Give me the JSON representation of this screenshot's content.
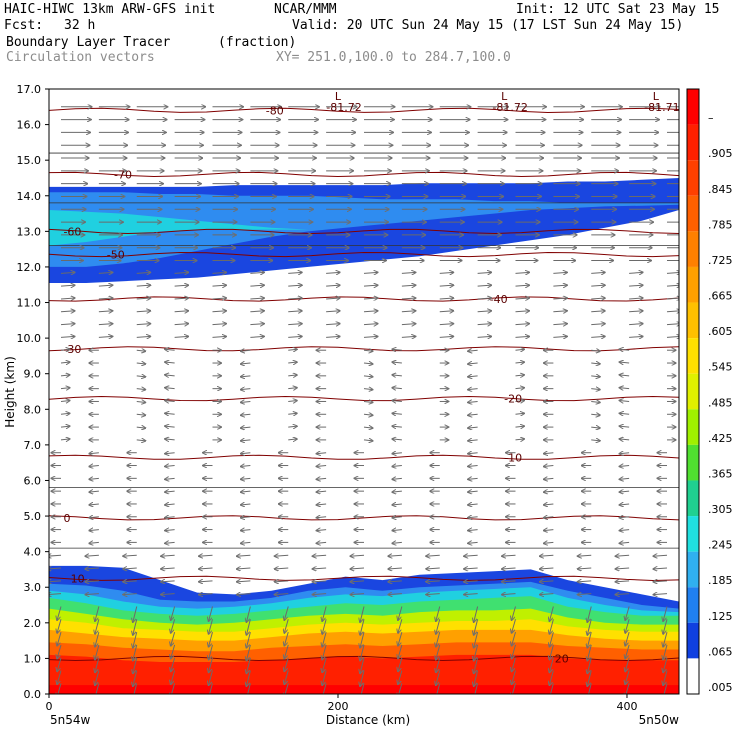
{
  "header": {
    "model": "HAIC-HIWC 13km ARW-GFS init",
    "org": "NCAR/MMM",
    "init": "Init: 12 UTC Sat 23 May 15",
    "fcst_label": "Fcst:",
    "fcst_value": "32 h",
    "valid": "Valid: 20 UTC Sun 24 May 15 (17 LST Sun 24 May 15)",
    "field": "Boundary Layer Tracer",
    "field_units": "(fraction)",
    "overlay": "Circulation vectors",
    "xy": "XY= 251.0,100.0 to 284.7,100.0"
  },
  "chart_data": {
    "type": "heatmap",
    "ylabel": "Height (km)",
    "xlabel": "Distance (km)",
    "ylim": [
      0,
      17
    ],
    "xlim": [
      0,
      436
    ],
    "y_ticks": [
      "0.0",
      "1.0",
      "2.0",
      "3.0",
      "4.0",
      "5.0",
      "6.0",
      "7.0",
      "8.0",
      "9.0",
      "10.0",
      "11.0",
      "12.0",
      "13.0",
      "14.0",
      "15.0",
      "16.0",
      "17.0"
    ],
    "x_ticks": [
      {
        "value": 0,
        "label": "0"
      },
      {
        "value": 200,
        "label": "200"
      },
      {
        "value": 400,
        "label": "400"
      }
    ],
    "x_endpoints": {
      "left": "5n54w",
      "right": "5n50w"
    },
    "colorbar": {
      "labels": [
        "–",
        ".905",
        ".845",
        ".785",
        ".725",
        ".665",
        ".605",
        ".545",
        ".485",
        ".425",
        ".365",
        ".305",
        ".245",
        ".185",
        ".125",
        ".065",
        ".005"
      ],
      "colors": [
        "#ff0000",
        "#ff2000",
        "#ff4000",
        "#ff6000",
        "#ff8000",
        "#ffa000",
        "#ffc000",
        "#ffe000",
        "#e0f000",
        "#a0f000",
        "#50e030",
        "#20d090",
        "#20e0e0",
        "#30b0f0",
        "#2080f0",
        "#1040e0",
        "#ffffff"
      ]
    },
    "tracer_layers": [
      {
        "color": "#1a46e0",
        "top": [
          3.6,
          3.6,
          3.55,
          3.2,
          2.85,
          2.8,
          2.9,
          3.1,
          3.3,
          3.2,
          3.35,
          3.4,
          3.45,
          3.5,
          3.2,
          3.0,
          2.8,
          2.6
        ]
      },
      {
        "color": "#2f8cf0",
        "top": [
          3.1,
          3.05,
          2.9,
          2.65,
          2.6,
          2.6,
          2.7,
          2.9,
          3.0,
          2.9,
          3.0,
          3.05,
          3.1,
          3.15,
          2.9,
          2.7,
          2.5,
          2.4
        ]
      },
      {
        "color": "#20d0e0",
        "top": [
          2.9,
          2.8,
          2.6,
          2.45,
          2.4,
          2.45,
          2.55,
          2.7,
          2.8,
          2.75,
          2.85,
          2.9,
          2.95,
          3.0,
          2.7,
          2.5,
          2.35,
          2.3
        ]
      },
      {
        "color": "#40e070",
        "top": [
          2.7,
          2.55,
          2.35,
          2.25,
          2.2,
          2.25,
          2.35,
          2.45,
          2.55,
          2.5,
          2.6,
          2.65,
          2.7,
          2.75,
          2.45,
          2.3,
          2.2,
          2.2
        ]
      },
      {
        "color": "#c0f000",
        "top": [
          2.4,
          2.25,
          2.1,
          2.0,
          1.95,
          2.0,
          2.1,
          2.2,
          2.25,
          2.2,
          2.3,
          2.35,
          2.35,
          2.4,
          2.15,
          2.0,
          1.95,
          1.95
        ]
      },
      {
        "color": "#ffe000",
        "top": [
          2.1,
          2.0,
          1.85,
          1.8,
          1.75,
          1.75,
          1.85,
          1.95,
          2.0,
          1.95,
          2.0,
          2.05,
          2.05,
          2.1,
          1.9,
          1.8,
          1.75,
          1.75
        ]
      },
      {
        "color": "#ffa000",
        "top": [
          1.8,
          1.7,
          1.6,
          1.55,
          1.5,
          1.5,
          1.6,
          1.7,
          1.75,
          1.7,
          1.75,
          1.8,
          1.8,
          1.8,
          1.65,
          1.55,
          1.5,
          1.5
        ]
      },
      {
        "color": "#ff6000",
        "top": [
          1.45,
          1.4,
          1.3,
          1.25,
          1.2,
          1.2,
          1.3,
          1.35,
          1.4,
          1.35,
          1.4,
          1.45,
          1.45,
          1.45,
          1.35,
          1.3,
          1.25,
          1.25
        ]
      },
      {
        "color": "#ff2000",
        "top": [
          1.1,
          1.05,
          0.95,
          0.9,
          0.9,
          0.9,
          0.95,
          1.0,
          1.05,
          1.0,
          1.05,
          1.1,
          1.1,
          1.1,
          1.0,
          0.95,
          0.95,
          0.95
        ]
      }
    ],
    "upper_layers": [
      {
        "color": "#1a46e0",
        "top": [
          14.25,
          14.25,
          14.25,
          14.25,
          14.25,
          14.3,
          14.3,
          14.3,
          14.3,
          14.3,
          14.35,
          14.35,
          14.35,
          14.35,
          14.4,
          14.4,
          14.45,
          14.5
        ],
        "bottom": [
          11.55,
          11.55,
          11.6,
          11.65,
          11.7,
          11.8,
          11.9,
          12.0,
          12.1,
          12.2,
          12.3,
          12.45,
          12.6,
          12.75,
          12.9,
          13.1,
          13.3,
          13.6
        ]
      },
      {
        "color": "#2f8cf0",
        "top": [
          14.1,
          14.1,
          14.1,
          14.05,
          14.05,
          14.0,
          14.0,
          14.0,
          13.95,
          13.9,
          13.9,
          13.9,
          13.85,
          13.85,
          13.8,
          13.8,
          13.8,
          13.8
        ],
        "bottom": [
          12.0,
          12.0,
          12.1,
          12.25,
          12.45,
          12.65,
          12.85,
          13.0,
          13.1,
          13.2,
          13.3,
          13.4,
          13.5,
          13.6,
          13.65,
          13.7,
          13.72,
          13.75
        ]
      },
      {
        "color": "#20d0e0",
        "top": [
          13.6,
          13.55,
          13.5,
          13.4,
          13.3,
          13.2,
          13.1,
          13.05,
          13.0,
          13.0,
          13.0,
          13.0,
          13.0,
          13.0,
          13.0,
          13.0,
          13.0,
          13.0
        ],
        "bottom": [
          12.6,
          12.7,
          12.85,
          13.0,
          13.05,
          13.05,
          13.05,
          13.05,
          13.0,
          13.0,
          13.0,
          13.0,
          13.0,
          13.0,
          13.0,
          13.0,
          13.0,
          13.0
        ]
      }
    ],
    "isotherms": [
      {
        "z": 16.4,
        "label": "-80",
        "label_x": 150
      },
      {
        "z": 14.6,
        "label": "-70",
        "label_x": 45
      },
      {
        "z": 13.0,
        "label": "-60",
        "label_x": 10
      },
      {
        "z": 12.35,
        "label": "-50",
        "label_x": 40
      },
      {
        "z": 11.1,
        "label": "-40",
        "label_x": 305
      },
      {
        "z": 9.7,
        "label": "-30",
        "label_x": 10
      },
      {
        "z": 8.3,
        "label": "-20",
        "label_x": 315
      },
      {
        "z": 6.65,
        "label": "-10",
        "label_x": 315
      },
      {
        "z": 4.95,
        "label": "0",
        "label_x": 10
      },
      {
        "z": 3.25,
        "label": "10",
        "label_x": 15
      },
      {
        "z": 1.0,
        "label": "20",
        "label_x": 350
      }
    ],
    "lows": [
      {
        "x": 200,
        "label": "-81.72"
      },
      {
        "x": 315,
        "label": "-81.72"
      },
      {
        "x": 420,
        "label": "-81.71"
      }
    ]
  }
}
